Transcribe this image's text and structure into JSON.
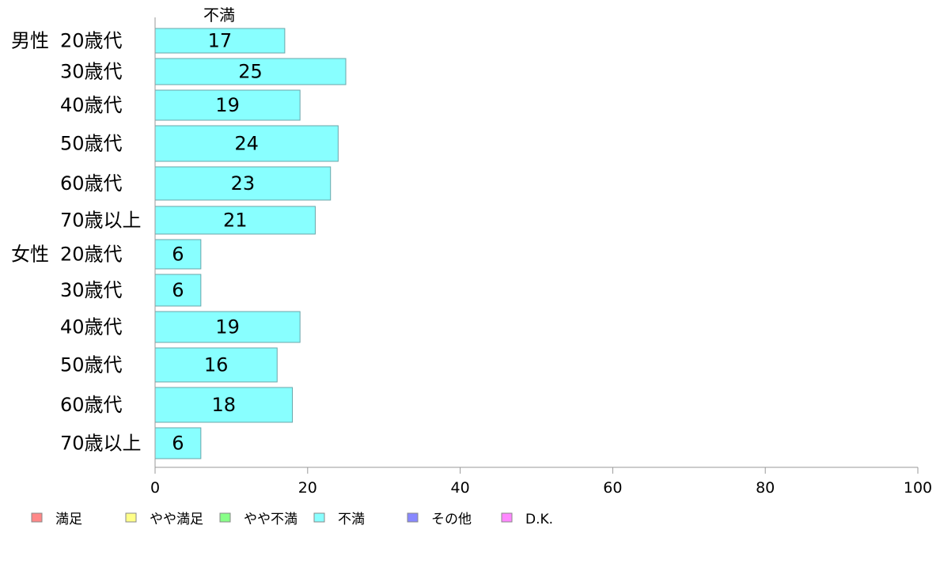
{
  "chart_data": {
    "type": "bar",
    "orientation": "horizontal",
    "header_label": "不満",
    "groups": [
      {
        "name": "男性",
        "start_index": 0
      },
      {
        "name": "女性",
        "start_index": 6
      }
    ],
    "categories": [
      "20歳代",
      "30歳代",
      "40歳代",
      "50歳代",
      "60歳代",
      "70歳以上",
      "20歳代",
      "30歳代",
      "40歳代",
      "50歳代",
      "60歳代",
      "70歳以上"
    ],
    "series": [
      {
        "name": "不満",
        "color": "#88ffff",
        "values": [
          17,
          25,
          19,
          24,
          23,
          21,
          6,
          6,
          19,
          16,
          18,
          6
        ]
      }
    ],
    "xlim": [
      0,
      100
    ],
    "xticks": [
      0,
      20,
      40,
      60,
      80,
      100
    ],
    "legend": {
      "placement": "bottom-left",
      "items": [
        {
          "label": "満足",
          "color": "#ff8888"
        },
        {
          "label": "やや満足",
          "color": "#ffff88"
        },
        {
          "label": "やや不満",
          "color": "#88ff88"
        },
        {
          "label": "不満",
          "color": "#88ffff"
        },
        {
          "label": "その他",
          "color": "#8888ff"
        },
        {
          "label": "D.K.",
          "color": "#ff88ff"
        }
      ]
    },
    "grid": false
  }
}
